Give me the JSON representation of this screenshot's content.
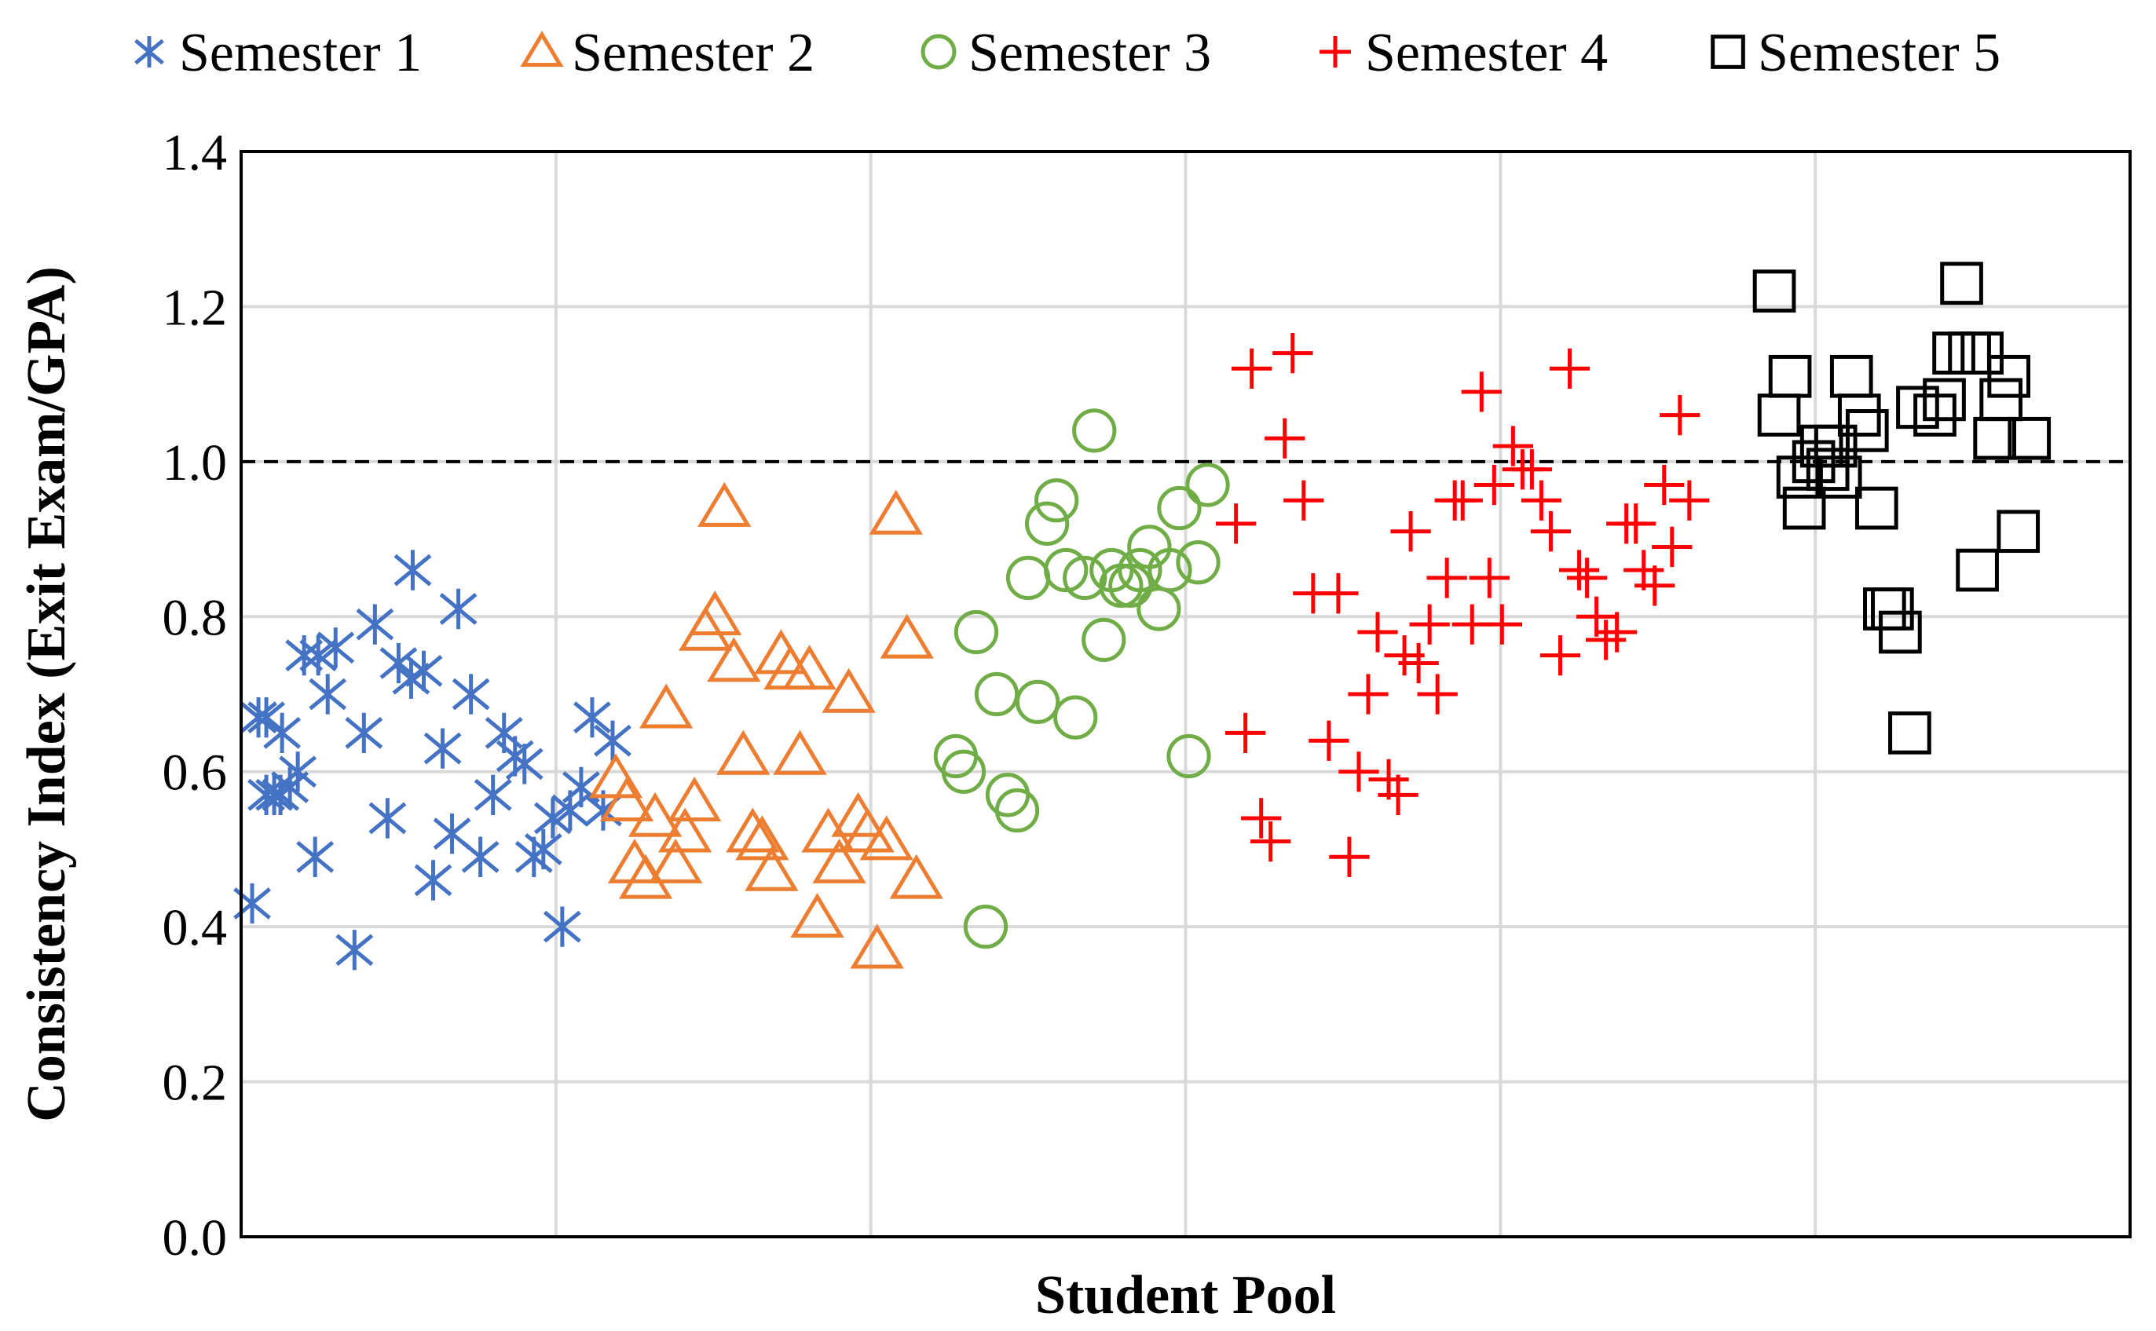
{
  "chart_data": {
    "type": "scatter",
    "title": "",
    "xlabel": "Student Pool",
    "ylabel": "Consistency Index (Exit Exam/GPA)",
    "xlim": [
      0,
      120
    ],
    "ylim": [
      0,
      1.4
    ],
    "yticks": [
      "0.0",
      "0.2",
      "0.4",
      "0.6",
      "0.8",
      "1.0",
      "1.2",
      "1.4"
    ],
    "grid": true,
    "reference_line": {
      "y": 1.0,
      "style": "dashed"
    },
    "legend": {
      "placement": "top"
    },
    "series": [
      {
        "name": "Semester 1",
        "marker": "asterisk",
        "color": "#4472C4",
        "points": [
          [
            0.7,
            0.43
          ],
          [
            1.1,
            0.67
          ],
          [
            1.6,
            0.67
          ],
          [
            1.6,
            0.57
          ],
          [
            2.1,
            0.57
          ],
          [
            2.6,
            0.65
          ],
          [
            2.5,
            0.57
          ],
          [
            3.1,
            0.58
          ],
          [
            3.6,
            0.6
          ],
          [
            4.0,
            0.75
          ],
          [
            4.7,
            0.49
          ],
          [
            4.9,
            0.75
          ],
          [
            5.5,
            0.7
          ],
          [
            6.0,
            0.76
          ],
          [
            7.2,
            0.37
          ],
          [
            7.8,
            0.65
          ],
          [
            8.5,
            0.79
          ],
          [
            9.3,
            0.54
          ],
          [
            10.0,
            0.74
          ],
          [
            10.8,
            0.72
          ],
          [
            10.9,
            0.86
          ],
          [
            11.6,
            0.73
          ],
          [
            12.2,
            0.46
          ],
          [
            12.8,
            0.63
          ],
          [
            13.8,
            0.81
          ],
          [
            13.4,
            0.52
          ],
          [
            14.6,
            0.7
          ],
          [
            15.2,
            0.49
          ],
          [
            16.0,
            0.57
          ],
          [
            16.7,
            0.65
          ],
          [
            17.4,
            0.62
          ],
          [
            18.0,
            0.61
          ],
          [
            18.6,
            0.49
          ],
          [
            19.2,
            0.5
          ],
          [
            19.8,
            0.54
          ],
          [
            20.4,
            0.4
          ],
          [
            20.9,
            0.55
          ],
          [
            21.6,
            0.58
          ],
          [
            22.3,
            0.67
          ],
          [
            23.0,
            0.55
          ],
          [
            23.6,
            0.64
          ]
        ]
      },
      {
        "name": "Semester 2",
        "marker": "triangle",
        "color": "#ED7D31",
        "points": [
          [
            23.8,
            0.59
          ],
          [
            24.5,
            0.56
          ],
          [
            25.0,
            0.48
          ],
          [
            25.7,
            0.46
          ],
          [
            26.3,
            0.54
          ],
          [
            27.0,
            0.68
          ],
          [
            27.6,
            0.48
          ],
          [
            28.2,
            0.52
          ],
          [
            28.8,
            0.56
          ],
          [
            29.5,
            0.78
          ],
          [
            30.1,
            0.8
          ],
          [
            30.7,
            0.94
          ],
          [
            31.3,
            0.74
          ],
          [
            31.9,
            0.62
          ],
          [
            32.5,
            0.52
          ],
          [
            33.1,
            0.51
          ],
          [
            33.7,
            0.47
          ],
          [
            34.3,
            0.75
          ],
          [
            34.9,
            0.73
          ],
          [
            35.5,
            0.62
          ],
          [
            36.1,
            0.73
          ],
          [
            36.6,
            0.41
          ],
          [
            37.3,
            0.52
          ],
          [
            38.0,
            0.48
          ],
          [
            38.6,
            0.7
          ],
          [
            39.2,
            0.54
          ],
          [
            39.8,
            0.52
          ],
          [
            40.4,
            0.37
          ],
          [
            41.0,
            0.51
          ],
          [
            41.6,
            0.93
          ],
          [
            42.3,
            0.77
          ],
          [
            42.9,
            0.46
          ]
        ]
      },
      {
        "name": "Semester 3",
        "marker": "circle",
        "color": "#70AD47",
        "points": [
          [
            45.4,
            0.62
          ],
          [
            45.9,
            0.6
          ],
          [
            46.7,
            0.78
          ],
          [
            47.3,
            0.4
          ],
          [
            48.0,
            0.7
          ],
          [
            48.7,
            0.57
          ],
          [
            49.3,
            0.55
          ],
          [
            50.0,
            0.85
          ],
          [
            50.6,
            0.69
          ],
          [
            51.2,
            0.92
          ],
          [
            51.8,
            0.95
          ],
          [
            52.4,
            0.86
          ],
          [
            53.0,
            0.67
          ],
          [
            53.6,
            0.85
          ],
          [
            54.2,
            1.04
          ],
          [
            54.8,
            0.77
          ],
          [
            55.3,
            0.86
          ],
          [
            55.9,
            0.84
          ],
          [
            56.5,
            0.84
          ],
          [
            57.1,
            0.86
          ],
          [
            57.7,
            0.89
          ],
          [
            58.3,
            0.81
          ],
          [
            59.0,
            0.86
          ],
          [
            59.6,
            0.94
          ],
          [
            60.2,
            0.62
          ],
          [
            60.8,
            0.87
          ],
          [
            61.4,
            0.97
          ]
        ]
      },
      {
        "name": "Semester 4",
        "marker": "plus",
        "color": "#FF0000",
        "points": [
          [
            63.2,
            0.92
          ],
          [
            63.8,
            0.65
          ],
          [
            64.2,
            1.12
          ],
          [
            64.8,
            0.54
          ],
          [
            65.4,
            0.51
          ],
          [
            66.3,
            1.03
          ],
          [
            66.8,
            1.14
          ],
          [
            67.5,
            0.95
          ],
          [
            68.1,
            0.83
          ],
          [
            69.1,
            0.64
          ],
          [
            69.7,
            0.83
          ],
          [
            70.4,
            0.49
          ],
          [
            71.0,
            0.6
          ],
          [
            71.6,
            0.7
          ],
          [
            72.2,
            0.78
          ],
          [
            72.9,
            0.59
          ],
          [
            73.5,
            0.57
          ],
          [
            73.9,
            0.75
          ],
          [
            74.3,
            0.91
          ],
          [
            74.8,
            0.74
          ],
          [
            75.5,
            0.79
          ],
          [
            76.0,
            0.7
          ],
          [
            76.6,
            0.85
          ],
          [
            77.1,
            0.95
          ],
          [
            77.6,
            0.95
          ],
          [
            78.2,
            0.79
          ],
          [
            78.8,
            1.09
          ],
          [
            79.3,
            0.85
          ],
          [
            79.6,
            0.97
          ],
          [
            80.1,
            0.79
          ],
          [
            80.8,
            1.02
          ],
          [
            81.4,
            0.99
          ],
          [
            82.0,
            0.99
          ],
          [
            82.6,
            0.95
          ],
          [
            83.2,
            0.91
          ],
          [
            83.8,
            0.75
          ],
          [
            84.4,
            1.12
          ],
          [
            85.0,
            0.86
          ],
          [
            85.5,
            0.85
          ],
          [
            86.1,
            0.8
          ],
          [
            86.7,
            0.77
          ],
          [
            87.4,
            0.78
          ],
          [
            88.0,
            0.92
          ],
          [
            88.6,
            0.92
          ],
          [
            89.1,
            0.86
          ],
          [
            89.8,
            0.84
          ],
          [
            90.4,
            0.97
          ],
          [
            90.9,
            0.89
          ],
          [
            91.4,
            1.06
          ],
          [
            92.0,
            0.95
          ]
        ]
      },
      {
        "name": "Semester 5",
        "marker": "square",
        "color": "#000000",
        "points": [
          [
            97.4,
            1.22
          ],
          [
            97.7,
            1.06
          ],
          [
            98.4,
            1.11
          ],
          [
            98.9,
            0.98
          ],
          [
            99.3,
            0.94
          ],
          [
            99.9,
            1.0
          ],
          [
            100.4,
            1.02
          ],
          [
            100.8,
            0.99
          ],
          [
            101.3,
            1.02
          ],
          [
            101.6,
            0.98
          ],
          [
            102.3,
            1.11
          ],
          [
            102.8,
            1.06
          ],
          [
            103.3,
            1.04
          ],
          [
            103.9,
            0.94
          ],
          [
            104.4,
            0.81
          ],
          [
            104.9,
            0.81
          ],
          [
            105.4,
            0.78
          ],
          [
            106.0,
            0.65
          ],
          [
            106.5,
            1.07
          ],
          [
            107.6,
            1.06
          ],
          [
            108.2,
            1.08
          ],
          [
            108.8,
            1.14
          ],
          [
            109.3,
            1.23
          ],
          [
            109.8,
            1.14
          ],
          [
            110.3,
            0.86
          ],
          [
            110.6,
            1.14
          ],
          [
            111.4,
            1.03
          ],
          [
            111.8,
            1.08
          ],
          [
            112.3,
            1.11
          ],
          [
            112.9,
            0.91
          ],
          [
            113.6,
            1.03
          ]
        ]
      }
    ]
  }
}
